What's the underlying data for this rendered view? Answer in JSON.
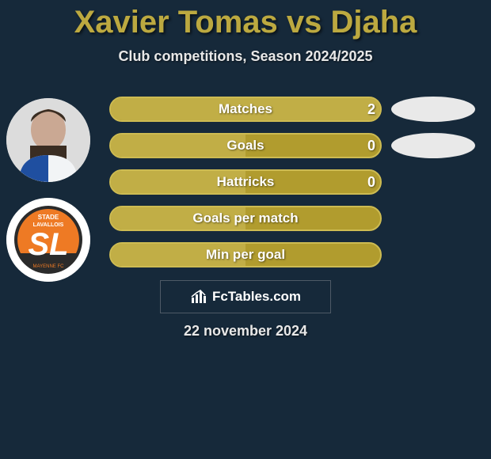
{
  "title": {
    "text": "Xavier Tomas vs Djaha",
    "color": "#bca940",
    "fontsize": 40
  },
  "subtitle": {
    "text": "Club competitions, Season 2024/2025",
    "fontsize": 18
  },
  "background_color": "#16293a",
  "player1": {
    "name": "Xavier Tomas",
    "avatar_bg": "#e8e8e8"
  },
  "player2": {
    "name": "Djaha",
    "badge_bg": "#ffffff",
    "badge_primary": "#ee7a24",
    "badge_secondary": "#2b2b2b",
    "badge_text_top": "STADE",
    "badge_text_mid": "LAVALLOIS",
    "badge_letters": "SL"
  },
  "stats": [
    {
      "label": "Matches",
      "p1_value": "2",
      "p2_value": "",
      "fill_pct": 100,
      "show_right_oval": true
    },
    {
      "label": "Goals",
      "p1_value": "0",
      "p2_value": "",
      "fill_pct": 50,
      "show_right_oval": true
    },
    {
      "label": "Hattricks",
      "p1_value": "0",
      "p2_value": "",
      "fill_pct": 50,
      "show_right_oval": false
    },
    {
      "label": "Goals per match",
      "p1_value": "",
      "p2_value": "",
      "fill_pct": 50,
      "show_right_oval": false
    },
    {
      "label": "Min per goal",
      "p1_value": "",
      "p2_value": "",
      "fill_pct": 50,
      "show_right_oval": false
    }
  ],
  "pill_style": {
    "bg": "#b19c2e",
    "fill": "#c1ae46",
    "border": "#cdbb52",
    "height": 32,
    "radius": 16,
    "gap": 14,
    "fontsize": 17,
    "text_color": "#ffffff"
  },
  "right_oval_color": "#e9e9e9",
  "brand": {
    "name": "FcTables.com",
    "icon": "bar-chart"
  },
  "date": "22 november 2024"
}
